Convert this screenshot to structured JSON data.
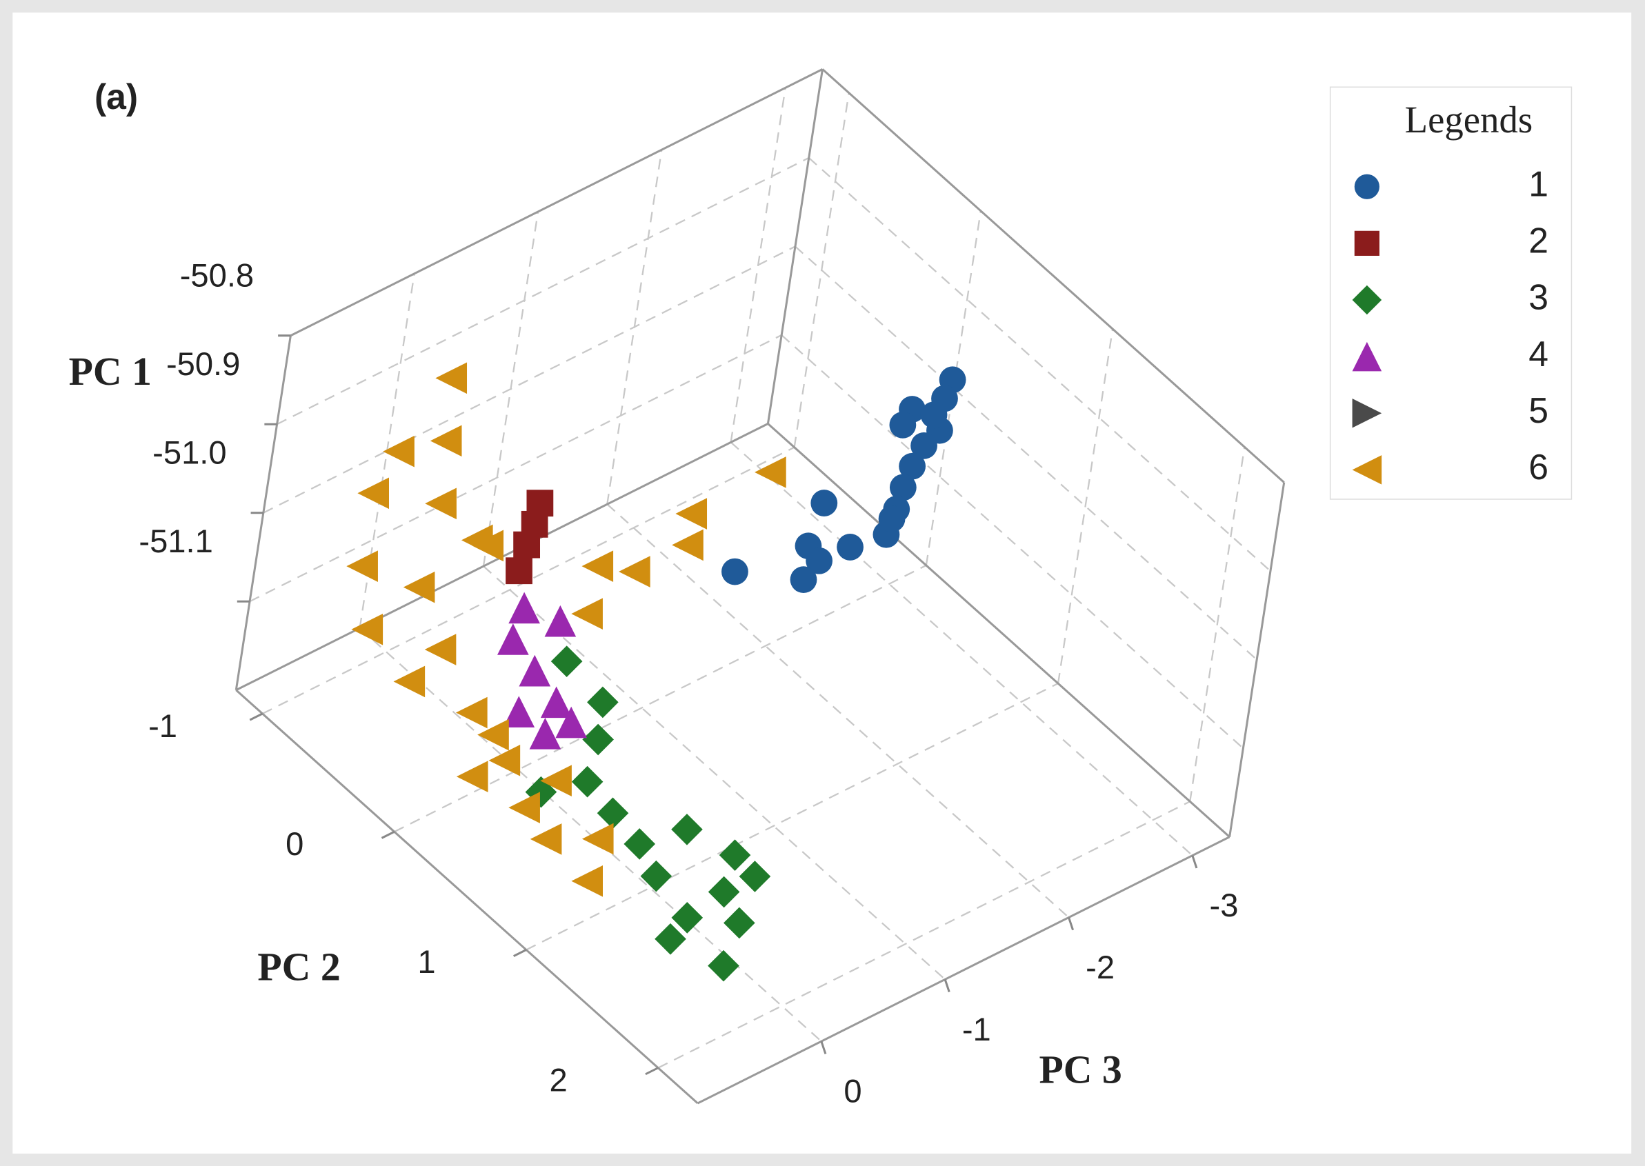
{
  "chart_data": {
    "type": "scatter3d",
    "panel_label": "(a)",
    "xlabel": "PC 2",
    "ylabel": "PC 3",
    "zlabel": "PC 1",
    "xlim": [
      -1.2,
      2.3
    ],
    "xticks": [
      -1,
      0,
      1,
      2
    ],
    "ylim": [
      1.0,
      -3.3
    ],
    "yticks": [
      0,
      -1,
      -2,
      -3
    ],
    "zlim": [
      -51.2,
      -50.8
    ],
    "zticks": [
      -51.1,
      {
        "value": -51,
        "label": "-51.0"
      },
      -50.9,
      -50.8
    ],
    "grid": true,
    "legend_title": "Legends",
    "legend": "upper right",
    "series": [
      {
        "name": "1",
        "color": "#1f5a99",
        "marker": "circle",
        "x": [
          0.13,
          0.21,
          0.18,
          0.24,
          0.37,
          0.41,
          0.49,
          0.58,
          0.68,
          0.79,
          0.45,
          0.64,
          0.76,
          0.75,
          0.81,
          0.58,
          0.27,
          0.72
        ],
        "y": [
          -3.11,
          -2.96,
          -2.73,
          -2.59,
          -2.75,
          -2.58,
          -2.4,
          -2.23,
          -2.07,
          -1.87,
          -1.73,
          -1.4,
          -1.61,
          -1.37,
          -1.18,
          -0.87,
          -2.81,
          -1.99
        ],
        "z": [
          -50.96,
          -50.96,
          -50.96,
          -50.96,
          -50.96,
          -50.96,
          -50.96,
          -50.96,
          -50.96,
          -50.96,
          -50.96,
          -50.96,
          -50.96,
          -50.96,
          -50.96,
          -50.96,
          -50.96,
          -50.96
        ]
      },
      {
        "name": "2",
        "color": "#8b1c1c",
        "marker": "square",
        "x": [
          -0.5,
          -0.4,
          -0.31,
          -0.19
        ],
        "y": [
          -0.49,
          -0.34,
          -0.18,
          0.01
        ],
        "z": [
          -51,
          -51,
          -51,
          -51
        ]
      },
      {
        "name": "3",
        "color": "#1f7a2a",
        "marker": "diamond",
        "x": [
          -0.19,
          0.13,
          0.32,
          0.52,
          0.76,
          1.0,
          1.05,
          1.32,
          1.49,
          1.53,
          1.7,
          1.89,
          1.6,
          1.22,
          0.45,
          1.49
        ],
        "y": [
          -0.53,
          -0.48,
          -0.24,
          0.06,
          0.11,
          0.15,
          -0.18,
          -0.28,
          -0.01,
          0.33,
          0.09,
          0.42,
          0.54,
          0.25,
          0.36,
          -0.26
        ],
        "z": [
          -51.14,
          -51.14,
          -51.14,
          -51.14,
          -51.14,
          -51.14,
          -51.14,
          -51.14,
          -51.14,
          -51.14,
          -51.14,
          -51.14,
          -51.14,
          -51.14,
          -51.14,
          -51.14
        ]
      },
      {
        "name": "4",
        "color": "#9a28ae",
        "marker": "triangle-up",
        "x": [
          -0.16,
          -0.33,
          -0.19,
          0.04,
          0.27,
          0.42,
          0.22,
          0.41
        ],
        "y": [
          -0.38,
          -0.27,
          -0.03,
          0.04,
          0.11,
          0.15,
          0.36,
          0.35
        ],
        "z": [
          -51.08,
          -51.08,
          -51.08,
          -51.08,
          -51.08,
          -51.08,
          -51.08,
          -51.08
        ]
      },
      {
        "name": "5",
        "color": "#4a4a4a",
        "marker": "triangle-right",
        "x": [],
        "y": [],
        "z": []
      },
      {
        "name": "6",
        "color": "#d18e10",
        "marker": "triangle-left",
        "x": [
          -0.71,
          -0.65,
          -0.81,
          -0.83,
          -0.59,
          -0.73,
          -0.55,
          -0.64,
          -0.42,
          -0.42,
          -0.17,
          -0.08,
          -0.47,
          0.09,
          0.4,
          0.34,
          0.63,
          0.77,
          0.97,
          0.09,
          -0.13,
          -0.12,
          0.04,
          0.04,
          -0.09,
          0.14,
          -0.5
        ],
        "y": [
          0.18,
          0.22,
          0.41,
          0.55,
          0.26,
          0.68,
          0.39,
          0.67,
          0.29,
          0.52,
          0.26,
          0.16,
          0.05,
          0.51,
          0.42,
          0.1,
          0.49,
          0.22,
          0.52,
          0.25,
          -1.98,
          -1.33,
          -1.13,
          -0.7,
          -0.54,
          -0.21,
          -0.09
        ],
        "z": [
          -50.84,
          -50.9,
          -50.92,
          -50.96,
          -50.96,
          -51.02,
          -51.04,
          -51.08,
          -51.1,
          -51.12,
          -51.14,
          -51.16,
          -51,
          -51.16,
          -51.16,
          -51.16,
          -51.16,
          -51.16,
          -51.16,
          -51.16,
          -51.02,
          -51.02,
          -51.02,
          -51.02,
          -51.02,
          -51.02,
          -51.02
        ]
      }
    ]
  }
}
